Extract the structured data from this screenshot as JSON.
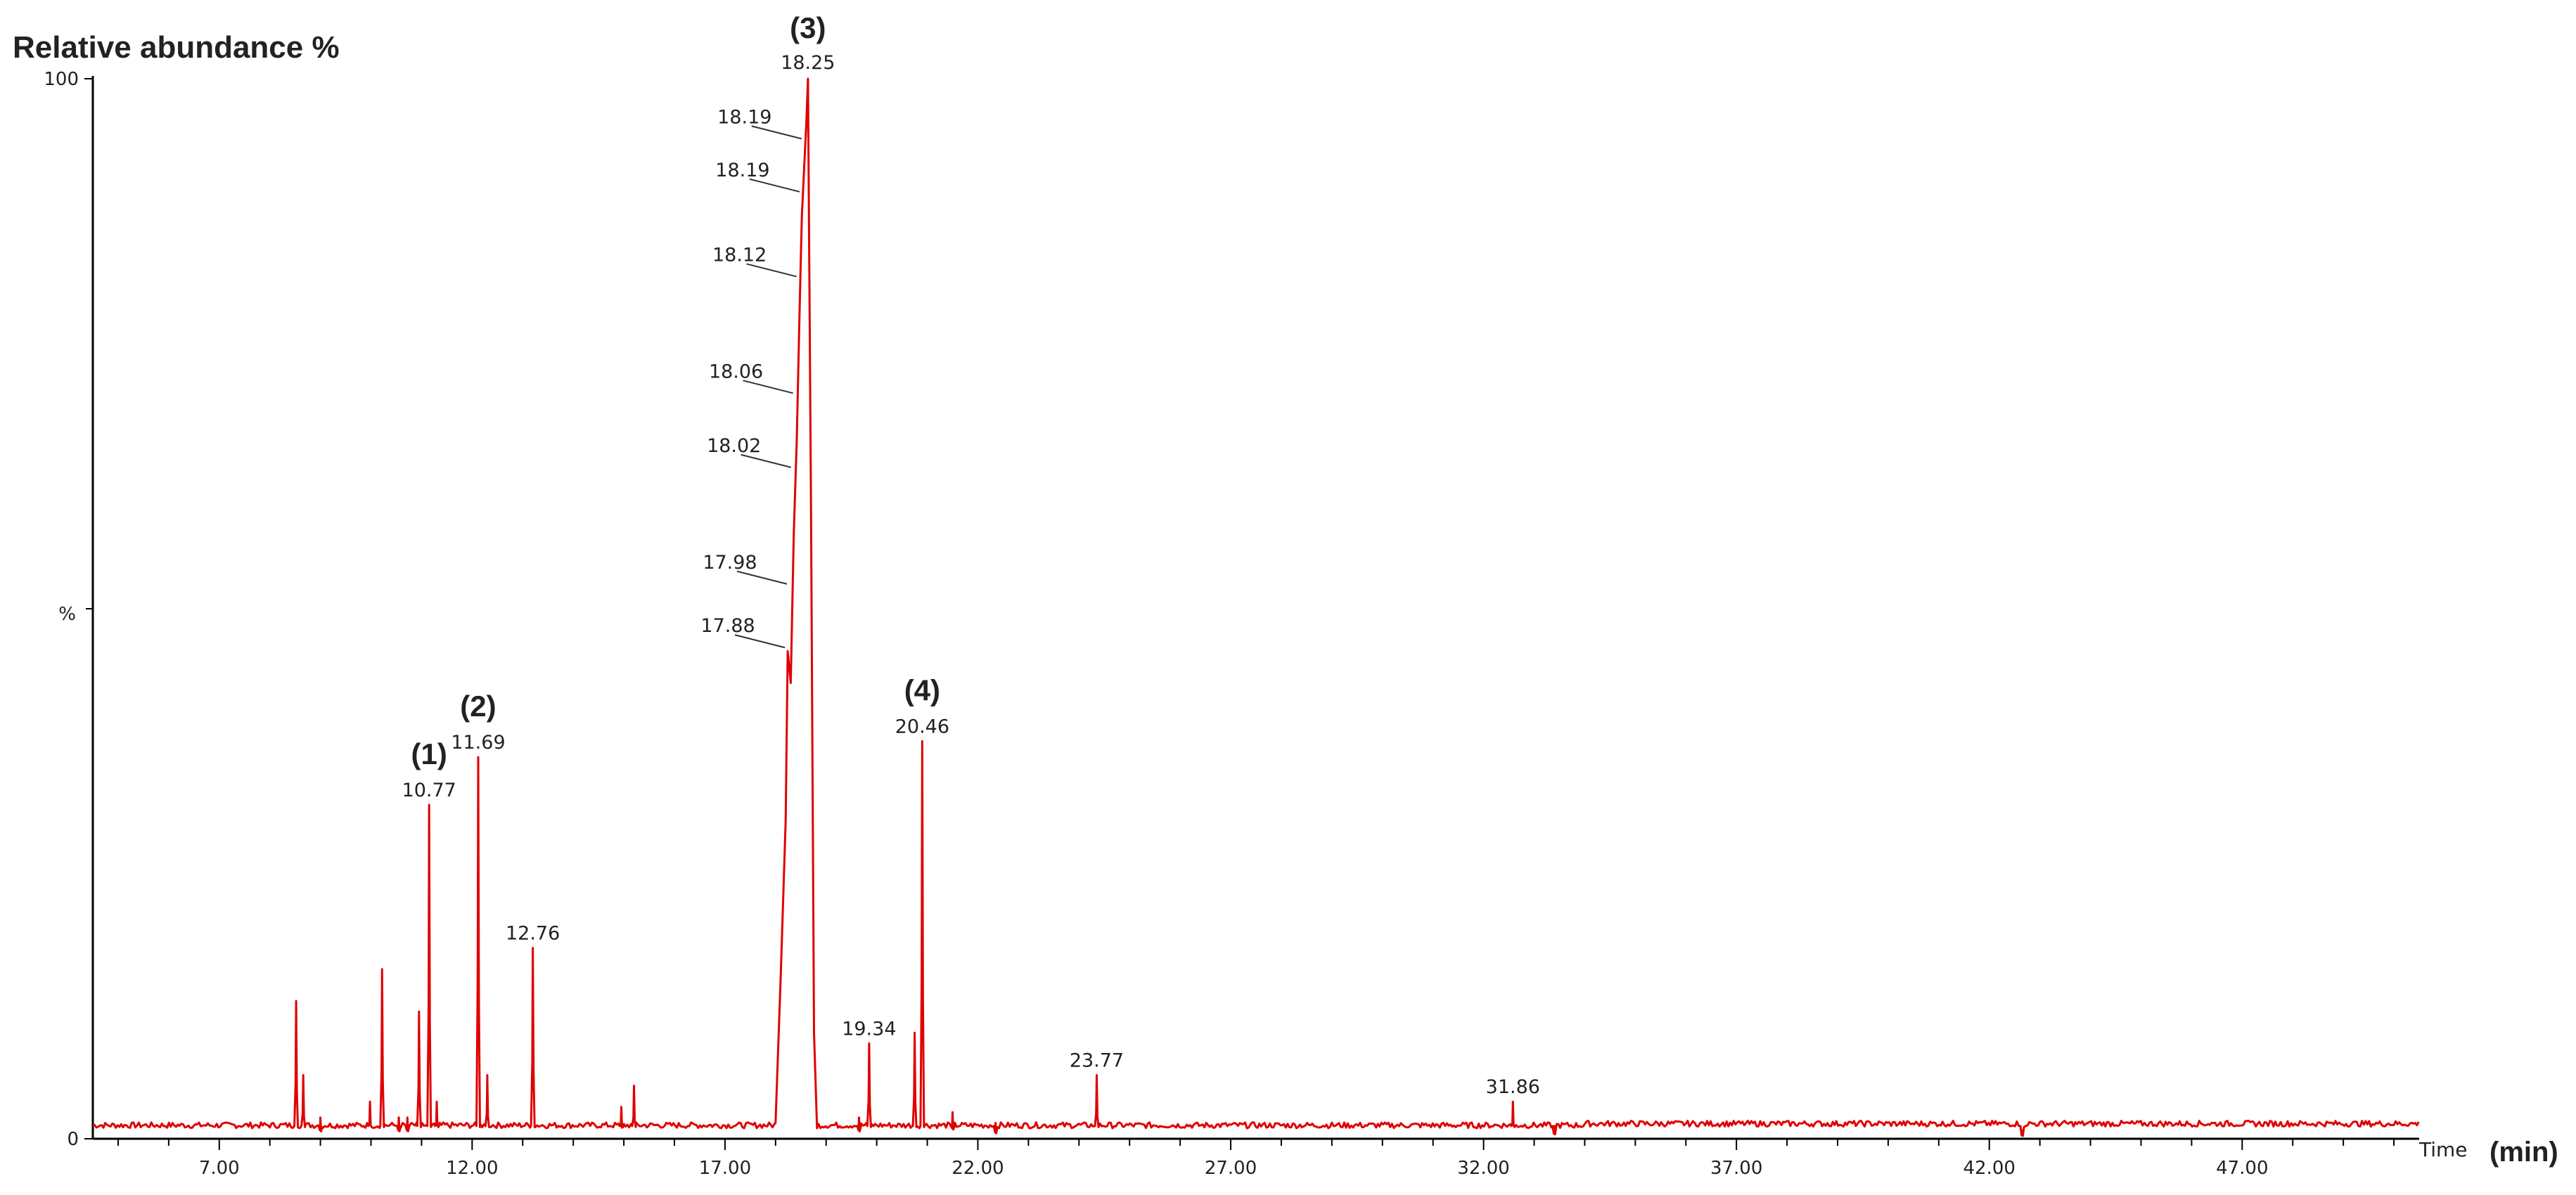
{
  "chart_data": {
    "type": "line",
    "ylabel": "Relative abundance %",
    "ylabel_mid": "%",
    "xlabel": "Time",
    "xlabel_unit": "(min)",
    "xlim": [
      4.5,
      50.5
    ],
    "ylim": [
      0,
      100
    ],
    "x_ticks": [
      "7.00",
      "12.00",
      "17.00",
      "22.00",
      "27.00",
      "32.00",
      "37.00",
      "42.00",
      "47.00"
    ],
    "y_ticks": [
      "0",
      "100"
    ],
    "grid": false,
    "legend": "none",
    "line_color": "#e00000",
    "peaks": [
      {
        "x": 8.52,
        "y": 13
      },
      {
        "x": 8.66,
        "y": 6
      },
      {
        "x": 9.0,
        "y": 2
      },
      {
        "x": 9.98,
        "y": 3.5
      },
      {
        "x": 10.22,
        "y": 16
      },
      {
        "x": 10.55,
        "y": 2
      },
      {
        "x": 10.72,
        "y": 2
      },
      {
        "x": 10.95,
        "y": 12
      },
      {
        "x": 11.15,
        "y": 31.5,
        "label": "10.77",
        "annotation": "(1)"
      },
      {
        "x": 11.3,
        "y": 3.5
      },
      {
        "x": 12.12,
        "y": 36,
        "label": "11.69",
        "annotation": "(2)"
      },
      {
        "x": 12.3,
        "y": 6
      },
      {
        "x": 13.2,
        "y": 18,
        "label": "12.76"
      },
      {
        "x": 14.95,
        "y": 3
      },
      {
        "x": 15.2,
        "y": 5
      },
      {
        "x": 19.65,
        "y": 2
      },
      {
        "x": 19.85,
        "y": 9,
        "label": "19.34"
      },
      {
        "x": 20.75,
        "y": 10
      },
      {
        "x": 20.9,
        "y": 37.5,
        "label": "20.46",
        "annotation": "(4)"
      },
      {
        "x": 21.5,
        "y": 2.5
      },
      {
        "x": 22.35,
        "y": 1.5
      },
      {
        "x": 24.35,
        "y": 6,
        "label": "23.77"
      },
      {
        "x": 32.58,
        "y": 3.5,
        "label": "31.86"
      },
      {
        "x": 33.4,
        "y": 1.2
      },
      {
        "x": 42.65,
        "y": 0.8
      }
    ],
    "main_peak": {
      "start_x": 18.0,
      "apex_x": 18.64,
      "end_x": 18.82,
      "profile": [
        {
          "x": 18.0,
          "y": 1.5
        },
        {
          "x": 18.1,
          "y": 15
        },
        {
          "x": 18.2,
          "y": 30
        },
        {
          "x": 18.24,
          "y": 46
        },
        {
          "x": 18.3,
          "y": 43
        },
        {
          "x": 18.36,
          "y": 57
        },
        {
          "x": 18.42,
          "y": 66
        },
        {
          "x": 18.47,
          "y": 77
        },
        {
          "x": 18.52,
          "y": 87
        },
        {
          "x": 18.57,
          "y": 92
        },
        {
          "x": 18.61,
          "y": 96
        },
        {
          "x": 18.64,
          "y": 100
        },
        {
          "x": 18.7,
          "y": 60
        },
        {
          "x": 18.76,
          "y": 10
        },
        {
          "x": 18.82,
          "y": 1
        }
      ],
      "labels": [
        {
          "text": "18.25",
          "x": 18.64,
          "y": 100,
          "ann": "(3)"
        },
        {
          "text": "18.19",
          "x": 18.57,
          "y": 95
        },
        {
          "text": "18.19",
          "x": 18.53,
          "y": 90
        },
        {
          "text": "18.12",
          "x": 18.47,
          "y": 82
        },
        {
          "text": "18.06",
          "x": 18.4,
          "y": 71
        },
        {
          "text": "18.02",
          "x": 18.36,
          "y": 64
        },
        {
          "text": "17.98",
          "x": 18.28,
          "y": 53
        },
        {
          "text": "17.88",
          "x": 18.24,
          "y": 47
        }
      ]
    }
  }
}
